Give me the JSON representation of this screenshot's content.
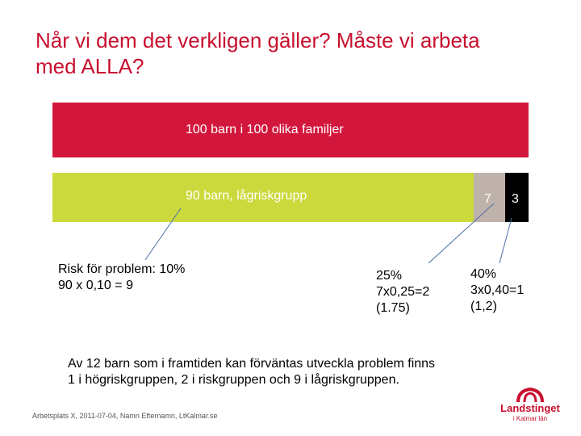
{
  "title": "Når vi dem det verkligen gäller? Måste vi arbeta\nmed ALLA?",
  "bars": {
    "total_label": "100 barn i 100 olika familjer",
    "low_label": "90 barn, lågriskgrupp",
    "mid_label": "7",
    "high_label": "3"
  },
  "callouts": {
    "low": "Risk för problem: 10%\n90 x 0,10 = 9",
    "mid": "25%\n7x0,25=2\n(1.75)",
    "high": "40%\n3x0,40=1\n(1,2)"
  },
  "summary": "Av 12 barn som i framtiden kan förväntas utveckla problem finns\n1 i högriskgruppen, 2 i riskgruppen och 9 i lågriskgruppen.",
  "footer": "Arbetsplats X, 2011-07-04, Namn Efternamn, LtKalmar.se",
  "logo": {
    "name": "Landstinget",
    "sub": "i Kalmar län"
  },
  "colors": {
    "title": "#c8102e",
    "total_bar": "#d3173c",
    "low_bar": "#cbd93c",
    "mid_bar": "#bfb2aa",
    "high_bar": "#000000",
    "connector": "#4a6fa5"
  }
}
